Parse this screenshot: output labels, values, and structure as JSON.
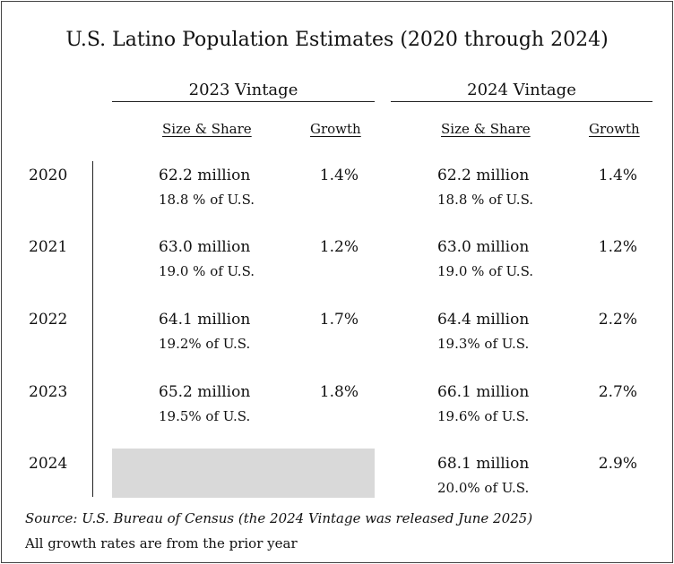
{
  "title": "U.S. Latino Population Estimates (2020 through 2024)",
  "vintages": [
    "2023 Vintage",
    "2024 Vintage"
  ],
  "headers": {
    "size_share": "Size & Share",
    "growth": "Growth"
  },
  "rows": [
    {
      "year": "2020",
      "v2023": {
        "size": "62.2 million",
        "share": "18.8 % of U.S.",
        "growth": "1.4%"
      },
      "v2024": {
        "size": "62.2 million",
        "share": "18.8 % of U.S.",
        "growth": "1.4%"
      }
    },
    {
      "year": "2021",
      "v2023": {
        "size": "63.0 million",
        "share": "19.0 % of U.S.",
        "growth": "1.2%"
      },
      "v2024": {
        "size": "63.0 million",
        "share": "19.0 % of U.S.",
        "growth": "1.2%"
      }
    },
    {
      "year": "2022",
      "v2023": {
        "size": "64.1 million",
        "share": "19.2% of U.S.",
        "growth": "1.7%"
      },
      "v2024": {
        "size": "64.4 million",
        "share": "19.3% of U.S.",
        "growth": "2.2%"
      }
    },
    {
      "year": "2023",
      "v2023": {
        "size": "65.2 million",
        "share": "19.5% of U.S.",
        "growth": "1.8%"
      },
      "v2024": {
        "size": "66.1 million",
        "share": "19.6% of U.S.",
        "growth": "2.7%"
      }
    },
    {
      "year": "2024",
      "v2023": null,
      "v2024": {
        "size": "68.1 million",
        "share": "20.0% of U.S.",
        "growth": "2.9%"
      }
    }
  ],
  "source": "Source: U.S. Bureau of Census (the 2024 Vintage was released June 2025)",
  "note": "All growth rates are from the prior year",
  "colors": {
    "blank_cell": "#d9d9d9",
    "text": "#111111"
  }
}
